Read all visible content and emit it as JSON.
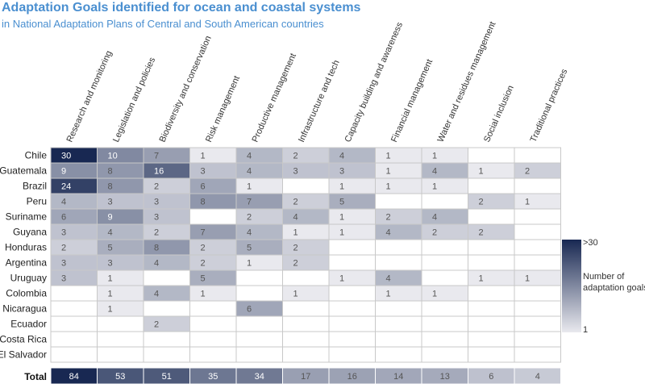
{
  "header": {
    "title": "Adaptation Goals identified for ocean and coastal systems",
    "subtitle": "in National Adaptation Plans of Central and South American countries"
  },
  "chart_data": {
    "type": "heatmap",
    "title": "Adaptation Goals identified for ocean and coastal systems",
    "subtitle": "in National Adaptation Plans of Central and South American countries",
    "columns": [
      "Research and monitoring",
      "Legislation and policies",
      "Biodiversity and conservation",
      "Risk management",
      "Productive management",
      "Infrastructure and tech",
      "Capacity building and awareness",
      "Financial management",
      "Water and residues management",
      "Social inclusion",
      "Traditional practices"
    ],
    "rows": [
      {
        "name": "Chile",
        "values": [
          30,
          10,
          7,
          1,
          4,
          2,
          4,
          1,
          1,
          null,
          null
        ]
      },
      {
        "name": "Guatemala",
        "values": [
          9,
          8,
          16,
          3,
          4,
          3,
          3,
          1,
          4,
          1,
          2
        ]
      },
      {
        "name": "Brazil",
        "values": [
          24,
          8,
          2,
          6,
          1,
          null,
          1,
          1,
          1,
          null,
          null
        ]
      },
      {
        "name": "Peru",
        "values": [
          4,
          3,
          3,
          8,
          7,
          2,
          5,
          null,
          null,
          2,
          1
        ]
      },
      {
        "name": "Suriname",
        "values": [
          6,
          9,
          3,
          null,
          2,
          4,
          1,
          2,
          4,
          null,
          null
        ]
      },
      {
        "name": "Guyana",
        "values": [
          3,
          4,
          2,
          7,
          4,
          1,
          1,
          4,
          2,
          2,
          null
        ]
      },
      {
        "name": "Honduras",
        "values": [
          2,
          5,
          8,
          2,
          5,
          2,
          null,
          null,
          null,
          null,
          null
        ]
      },
      {
        "name": "Argentina",
        "values": [
          3,
          3,
          4,
          2,
          1,
          2,
          null,
          null,
          null,
          null,
          null
        ]
      },
      {
        "name": "Uruguay",
        "values": [
          3,
          1,
          null,
          5,
          null,
          null,
          1,
          4,
          null,
          1,
          1
        ]
      },
      {
        "name": "Colombia",
        "values": [
          null,
          1,
          4,
          1,
          null,
          1,
          null,
          1,
          1,
          null,
          null
        ]
      },
      {
        "name": "Nicaragua",
        "values": [
          null,
          1,
          null,
          null,
          6,
          null,
          null,
          null,
          null,
          null,
          null
        ]
      },
      {
        "name": "Ecuador",
        "values": [
          null,
          null,
          2,
          null,
          null,
          null,
          null,
          null,
          null,
          null,
          null
        ]
      },
      {
        "name": "Costa Rica",
        "values": [
          null,
          null,
          null,
          null,
          null,
          null,
          null,
          null,
          null,
          null,
          null
        ]
      },
      {
        "name": "El Salvador",
        "values": [
          null,
          null,
          null,
          null,
          null,
          null,
          null,
          null,
          null,
          null,
          null
        ]
      }
    ],
    "total_label": "Total",
    "totals": [
      84,
      53,
      51,
      35,
      34,
      17,
      16,
      14,
      13,
      6,
      4
    ],
    "legend": {
      "title_lines": [
        "Number of",
        "adaptation goals"
      ],
      "max_label": ">30",
      "min_label": "1",
      "min": 1,
      "max": 30,
      "placement": "right"
    },
    "colors": {
      "low": "#e9e9ee",
      "high": "#182852",
      "empty_fill": "#ffffff",
      "grid_border": "#c8c8c8",
      "dark_text": "#ffffff",
      "light_text": "#555555"
    }
  }
}
